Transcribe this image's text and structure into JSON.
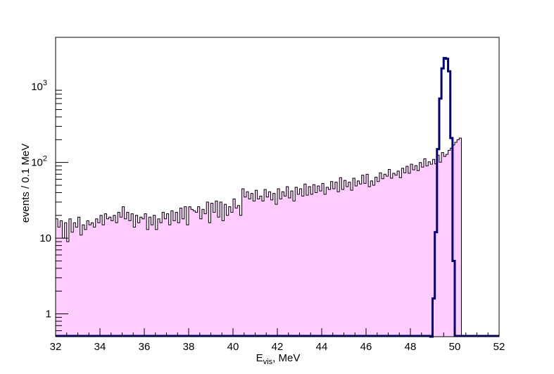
{
  "chart_data": {
    "type": "histogram",
    "title": "",
    "xlabel_main": "E",
    "xlabel_sub": "vis",
    "xlabel_rest": ", MeV",
    "ylabel": "events / 0.1 MeV",
    "y_scale": "log",
    "xlim": [
      32,
      52
    ],
    "ylim": [
      0.5,
      4500
    ],
    "bin_width": 0.1,
    "x_ticks": [
      {
        "value": 32,
        "label": "32"
      },
      {
        "value": 34,
        "label": "34"
      },
      {
        "value": 36,
        "label": "36"
      },
      {
        "value": 38,
        "label": "38"
      },
      {
        "value": 40,
        "label": "40"
      },
      {
        "value": 42,
        "label": "42"
      },
      {
        "value": 44,
        "label": "44"
      },
      {
        "value": 46,
        "label": "46"
      },
      {
        "value": 48,
        "label": "48"
      },
      {
        "value": 50,
        "label": "50"
      },
      {
        "value": 52,
        "label": "52"
      }
    ],
    "y_ticks": [
      {
        "value": 1,
        "base": "1",
        "exp": ""
      },
      {
        "value": 10,
        "base": "10",
        "exp": ""
      },
      {
        "value": 100,
        "base": "10",
        "exp": "2"
      },
      {
        "value": 1000,
        "base": "10",
        "exp": "3"
      }
    ],
    "series": [
      {
        "role": "background",
        "style": "filled step",
        "fill_color": "#ffccff",
        "line_color": "#000000",
        "x_start": 32.0,
        "values": [
          18,
          14,
          17,
          10,
          16,
          9,
          18,
          12,
          16,
          14,
          19,
          11,
          15,
          13,
          17,
          15,
          16,
          14,
          18,
          16,
          20,
          15,
          21,
          18,
          19,
          17,
          20,
          16,
          22,
          19,
          26,
          18,
          22,
          17,
          21,
          14,
          20,
          16,
          19,
          18,
          21,
          13,
          19,
          15,
          20,
          13,
          18,
          16,
          22,
          18,
          21,
          15,
          23,
          17,
          22,
          16,
          25,
          18,
          26,
          15,
          26,
          24,
          23,
          22,
          26,
          18,
          24,
          21,
          30,
          16,
          29,
          22,
          31,
          19,
          30,
          17,
          28,
          20,
          26,
          22,
          33,
          25,
          27,
          20,
          45,
          35,
          41,
          33,
          39,
          31,
          43,
          33,
          36,
          31,
          44,
          35,
          41,
          32,
          39,
          28,
          45,
          33,
          41,
          36,
          48,
          34,
          42,
          31,
          47,
          38,
          45,
          36,
          52,
          37,
          48,
          38,
          51,
          40,
          49,
          42,
          53,
          38,
          47,
          44,
          56,
          45,
          55,
          41,
          63,
          44,
          58,
          48,
          55,
          43,
          62,
          49,
          57,
          52,
          68,
          53,
          70,
          48,
          57,
          50,
          64,
          56,
          73,
          61,
          70,
          66,
          81,
          62,
          72,
          68,
          77,
          63,
          84,
          73,
          89,
          72,
          95,
          80,
          91,
          78,
          100,
          87,
          112,
          90,
          102,
          95,
          110,
          96,
          125,
          101,
          135,
          120,
          128,
          145,
          155,
          170,
          185,
          200,
          210
        ]
      },
      {
        "role": "signal",
        "style": "step line",
        "line_color": "#000080",
        "x_start": 48.9,
        "values": [
          0.5,
          1.6,
          12,
          150,
          700,
          1750,
          2400,
          2350,
          1600,
          210,
          5
        ]
      }
    ]
  }
}
